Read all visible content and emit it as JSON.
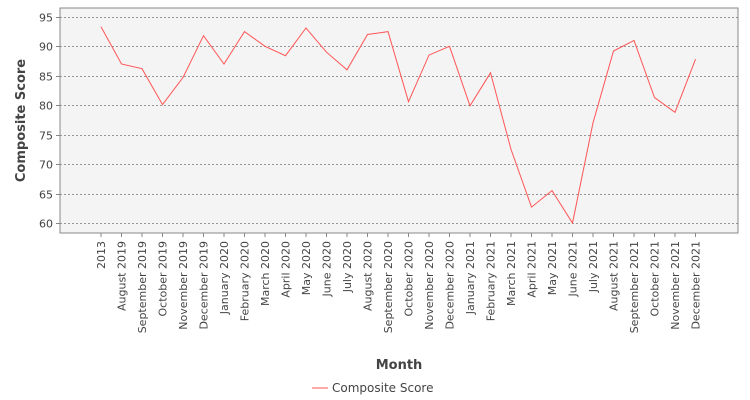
{
  "chart_data": {
    "type": "line",
    "title": "",
    "xlabel": "Month",
    "ylabel": "Composite Score",
    "categories": [
      "2013",
      "August 2019",
      "September 2019",
      "October 2019",
      "November 2019",
      "December 2019",
      "January 2020",
      "February 2020",
      "March 2020",
      "April 2020",
      "May 2020",
      "June 2020",
      "July 2020",
      "August 2020",
      "September 2020",
      "October 2020",
      "November 2020",
      "December 2020",
      "January 2021",
      "February 2021",
      "March 2021",
      "April 2021",
      "May 2021",
      "June 2021",
      "July 2021",
      "August 2021",
      "September 2021",
      "October 2021",
      "November 2021",
      "December 2021"
    ],
    "series": [
      {
        "name": "Composite Score",
        "color": "#ff5555",
        "values": [
          93.3,
          87.0,
          86.2,
          80.1,
          84.7,
          91.8,
          87.0,
          92.5,
          90.0,
          88.4,
          93.1,
          89.0,
          86.0,
          92.0,
          92.5,
          80.6,
          88.5,
          90.0,
          79.9,
          85.5,
          72.5,
          62.7,
          65.5,
          60.0,
          77.0,
          89.2,
          91.0,
          81.3,
          78.8,
          87.8
        ]
      }
    ],
    "yticks": [
      60,
      65,
      70,
      75,
      80,
      85,
      90,
      95
    ],
    "ylim": [
      58.3,
      96.5
    ],
    "grid": true,
    "legend": "bottom-center",
    "plot_background": "#f4f4f4",
    "grid_color": "#777777"
  }
}
